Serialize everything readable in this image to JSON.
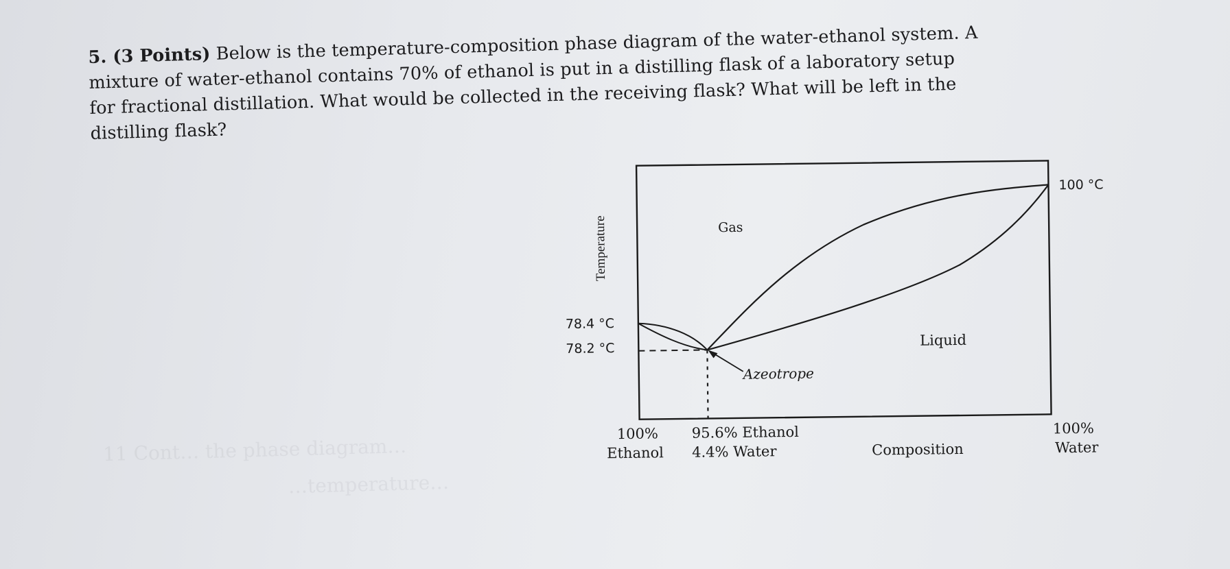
{
  "question": {
    "number_points": "5. (3 Points)",
    "lines": [
      " Below is the temperature-composition phase diagram of the water-ethanol system. A",
      "mixture of water-ethanol contains 70% of ethanol is put in a distilling flask of a laboratory setup",
      "for fractional distillation. What would be collected in the receiving flask? What will be left in the",
      "distilling flask?"
    ]
  },
  "diagram": {
    "y_axis_label": "Temperature",
    "region_gas": "Gas",
    "region_liquid": "Liquid",
    "azeotrope_label": "Azeotrope",
    "temp_ethanol": "78.4 °C",
    "temp_azeotrope": "78.2 °C",
    "temp_water": "100 °C",
    "x_left_line1": "100%",
    "x_left_line2": "Ethanol",
    "x_azeo_line1": "95.6% Ethanol",
    "x_azeo_line2": "4.4% Water",
    "x_axis_label": "Composition",
    "x_right_line1": "100%",
    "x_right_line2": "Water"
  }
}
